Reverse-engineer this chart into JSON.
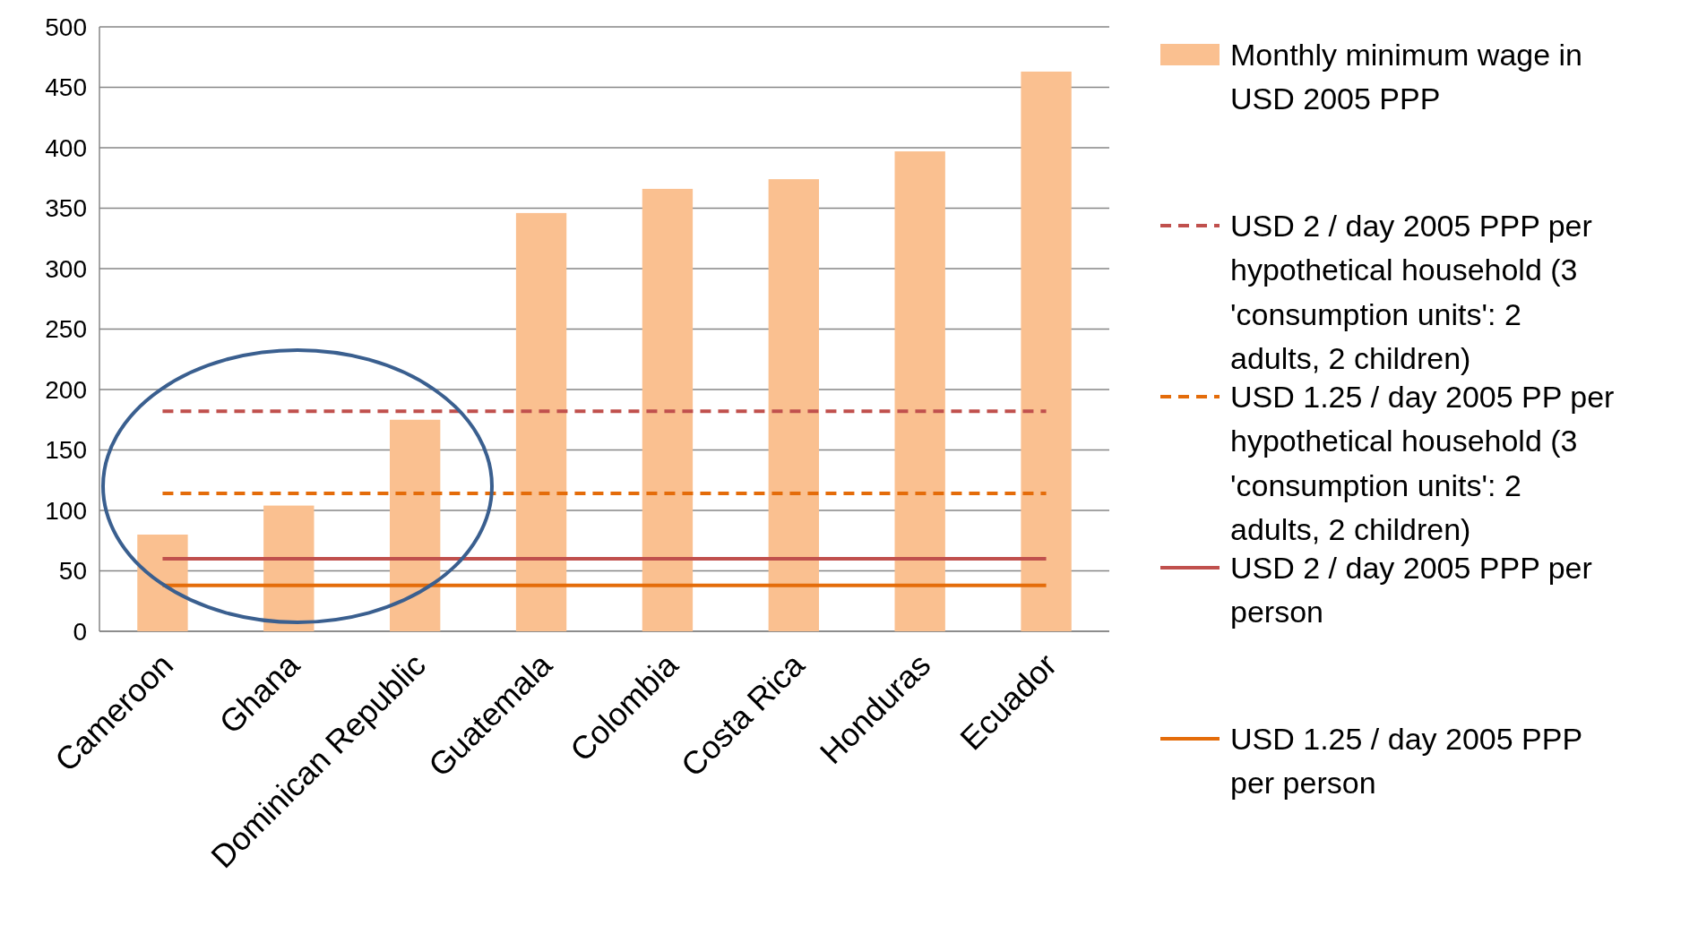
{
  "chart_data": {
    "type": "bar",
    "categories": [
      "Cameroon",
      "Ghana",
      "Dominican Republic",
      "Guatemala",
      "Colombia",
      "Costa Rica",
      "Honduras",
      "Ecuador"
    ],
    "series": [
      {
        "name": "Monthly minimum wage in USD 2005 PPP",
        "color": "#fac090",
        "values": [
          80,
          104,
          175,
          346,
          366,
          374,
          397,
          463
        ]
      },
      {
        "name": "USD 2 / day 2005 PPP per hypothetical household (3 'consumption units': 2 adults, 2 children)",
        "type": "line",
        "line_style": "dashed",
        "color": "#c0504d",
        "values": [
          182,
          182,
          182,
          182,
          182,
          182,
          182,
          182
        ]
      },
      {
        "name": "USD 1.25 / day 2005 PP per hypothetical  household (3 'consumption units': 2 adults, 2 children)",
        "type": "line",
        "line_style": "dashed",
        "color": "#e46c0a",
        "values": [
          114,
          114,
          114,
          114,
          114,
          114,
          114,
          114
        ]
      },
      {
        "name": "USD 2 / day 2005 PPP per person",
        "type": "line",
        "line_style": "solid",
        "color": "#c0504d",
        "values": [
          60,
          60,
          60,
          60,
          60,
          60,
          60,
          60
        ]
      },
      {
        "name": "USD 1.25 / day 2005 PPP per person",
        "type": "line",
        "line_style": "solid",
        "color": "#e46c0a",
        "values": [
          38,
          38,
          38,
          38,
          38,
          38,
          38,
          38
        ]
      }
    ],
    "ylim": [
      0,
      500
    ],
    "yticks": [
      0,
      50,
      100,
      150,
      200,
      250,
      300,
      350,
      400,
      450,
      500
    ],
    "grid": "y",
    "legend": "right"
  }
}
